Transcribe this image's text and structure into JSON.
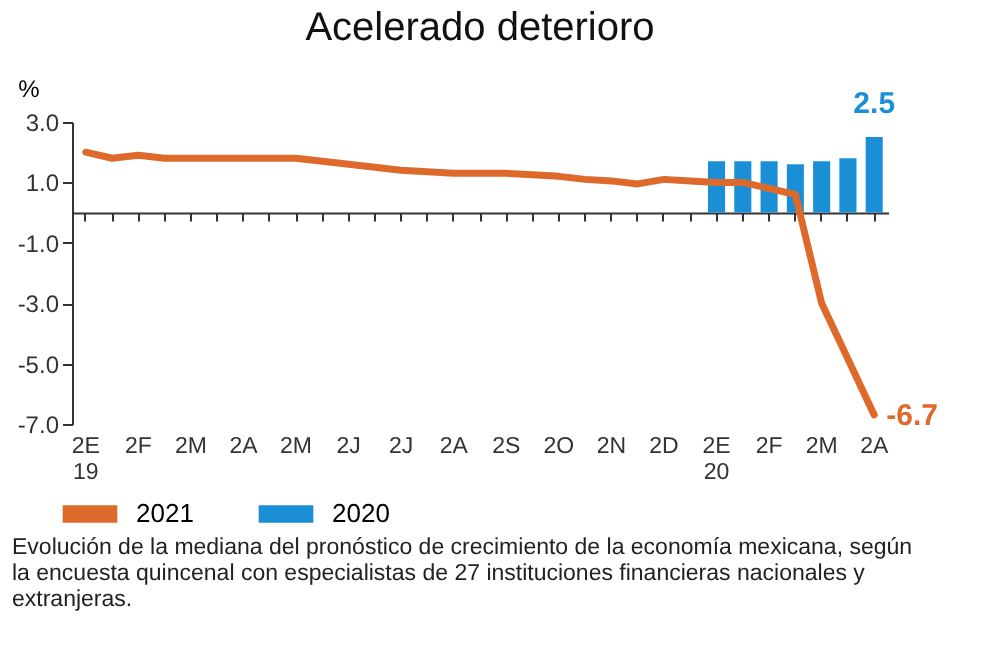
{
  "chart_data": {
    "type": "line",
    "title": "Acelerado deterioro",
    "ylabel": "%",
    "categories": [
      "2E\n19",
      null,
      "2F",
      null,
      "2M",
      null,
      "2A",
      null,
      "2M",
      null,
      "2J",
      null,
      "2J",
      null,
      "2A",
      null,
      "2S",
      null,
      "2O",
      null,
      "2N",
      null,
      "2D",
      null,
      "2E\n20",
      null,
      "2F",
      null,
      "2M",
      null,
      "2A"
    ],
    "series": [
      {
        "name": "2021",
        "color": "#dd6a2a",
        "values": [
          2.0,
          1.8,
          1.9,
          1.8,
          1.8,
          1.8,
          1.8,
          1.8,
          1.8,
          1.7,
          1.6,
          1.5,
          1.4,
          1.35,
          1.3,
          1.3,
          1.3,
          1.25,
          1.2,
          1.1,
          1.05,
          0.95,
          1.1,
          1.05,
          1.0,
          1.0,
          0.8,
          0.6,
          -3.0,
          -4.85,
          -6.7
        ],
        "value_labels": [
          null,
          null,
          null,
          null,
          null,
          null,
          null,
          null,
          null,
          null,
          null,
          null,
          null,
          null,
          null,
          null,
          null,
          null,
          null,
          null,
          null,
          null,
          null,
          null,
          null,
          null,
          null,
          null,
          null,
          null,
          "-6.7"
        ]
      },
      {
        "name": "2020",
        "type": "bar",
        "color": "#1b8fd6",
        "values": [
          null,
          null,
          null,
          null,
          null,
          null,
          null,
          null,
          null,
          null,
          null,
          null,
          null,
          null,
          null,
          null,
          null,
          null,
          null,
          null,
          null,
          null,
          null,
          null,
          1.7,
          1.7,
          1.7,
          1.6,
          1.7,
          1.8,
          2.5
        ],
        "value_labels": [
          null,
          null,
          null,
          null,
          null,
          null,
          null,
          null,
          null,
          null,
          null,
          null,
          null,
          null,
          null,
          null,
          null,
          null,
          null,
          null,
          null,
          null,
          null,
          null,
          null,
          null,
          null,
          null,
          null,
          null,
          "2.5"
        ]
      }
    ],
    "ylim": [
      -7,
      3
    ],
    "yticks": [
      {
        "value": 3,
        "label": "3.0"
      },
      {
        "value": 1,
        "label": "1.0"
      },
      {
        "value": -1,
        "label": "-1.0"
      },
      {
        "value": -3,
        "label": "-3.0"
      },
      {
        "value": -5,
        "label": "-5.0"
      },
      {
        "value": -7,
        "label": "-7.0"
      }
    ],
    "grid": false,
    "legend": "bottom",
    "annotations": [
      "Evolución de la mediana del pronóstico de crecimiento de la economía mexicana, según la encuesta quincenal con especialistas de 27 instituciones financieras nacionales y extranjeras."
    ]
  }
}
